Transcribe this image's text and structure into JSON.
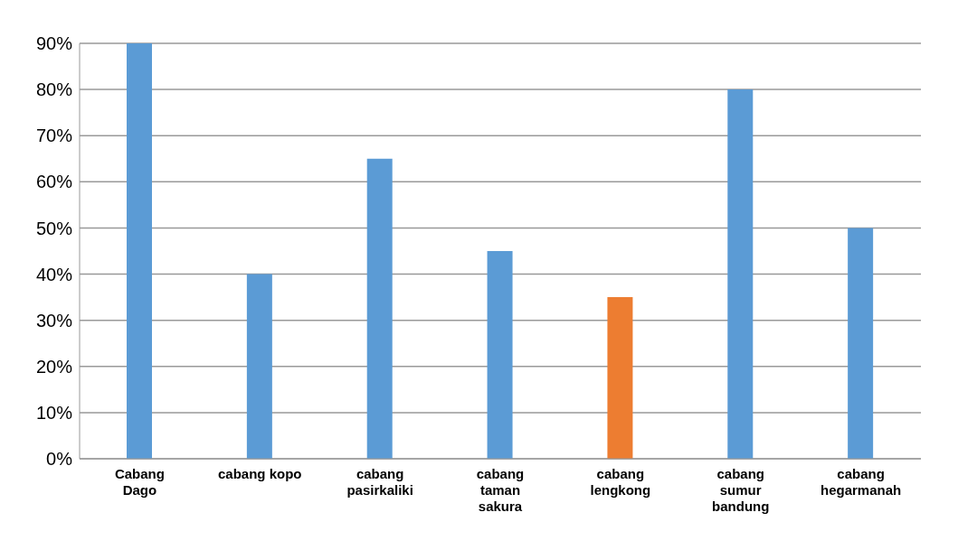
{
  "chart_data": {
    "type": "bar",
    "categories": [
      "Cabang\nDago",
      "cabang kopo",
      "cabang\npasirkaliki",
      "cabang\ntaman\nsakura",
      "cabang\nlengkong",
      "cabang\nsumur\nbandung",
      "cabang\nhegarmanah"
    ],
    "values": [
      90,
      40,
      65,
      45,
      35,
      80,
      50
    ],
    "colors": [
      "#5b9bd5",
      "#5b9bd5",
      "#5b9bd5",
      "#5b9bd5",
      "#ed7d31",
      "#5b9bd5",
      "#5b9bd5"
    ],
    "ylim": [
      0,
      90
    ],
    "yticks": [
      {
        "value": 0,
        "label": "0%"
      },
      {
        "value": 10,
        "label": "10%"
      },
      {
        "value": 20,
        "label": "20%"
      },
      {
        "value": 30,
        "label": "30%"
      },
      {
        "value": 40,
        "label": "40%"
      },
      {
        "value": 50,
        "label": "50%"
      },
      {
        "value": 60,
        "label": "60%"
      },
      {
        "value": 70,
        "label": "70%"
      },
      {
        "value": 80,
        "label": "80%"
      },
      {
        "value": 90,
        "label": "90%"
      }
    ],
    "grid": "y"
  }
}
